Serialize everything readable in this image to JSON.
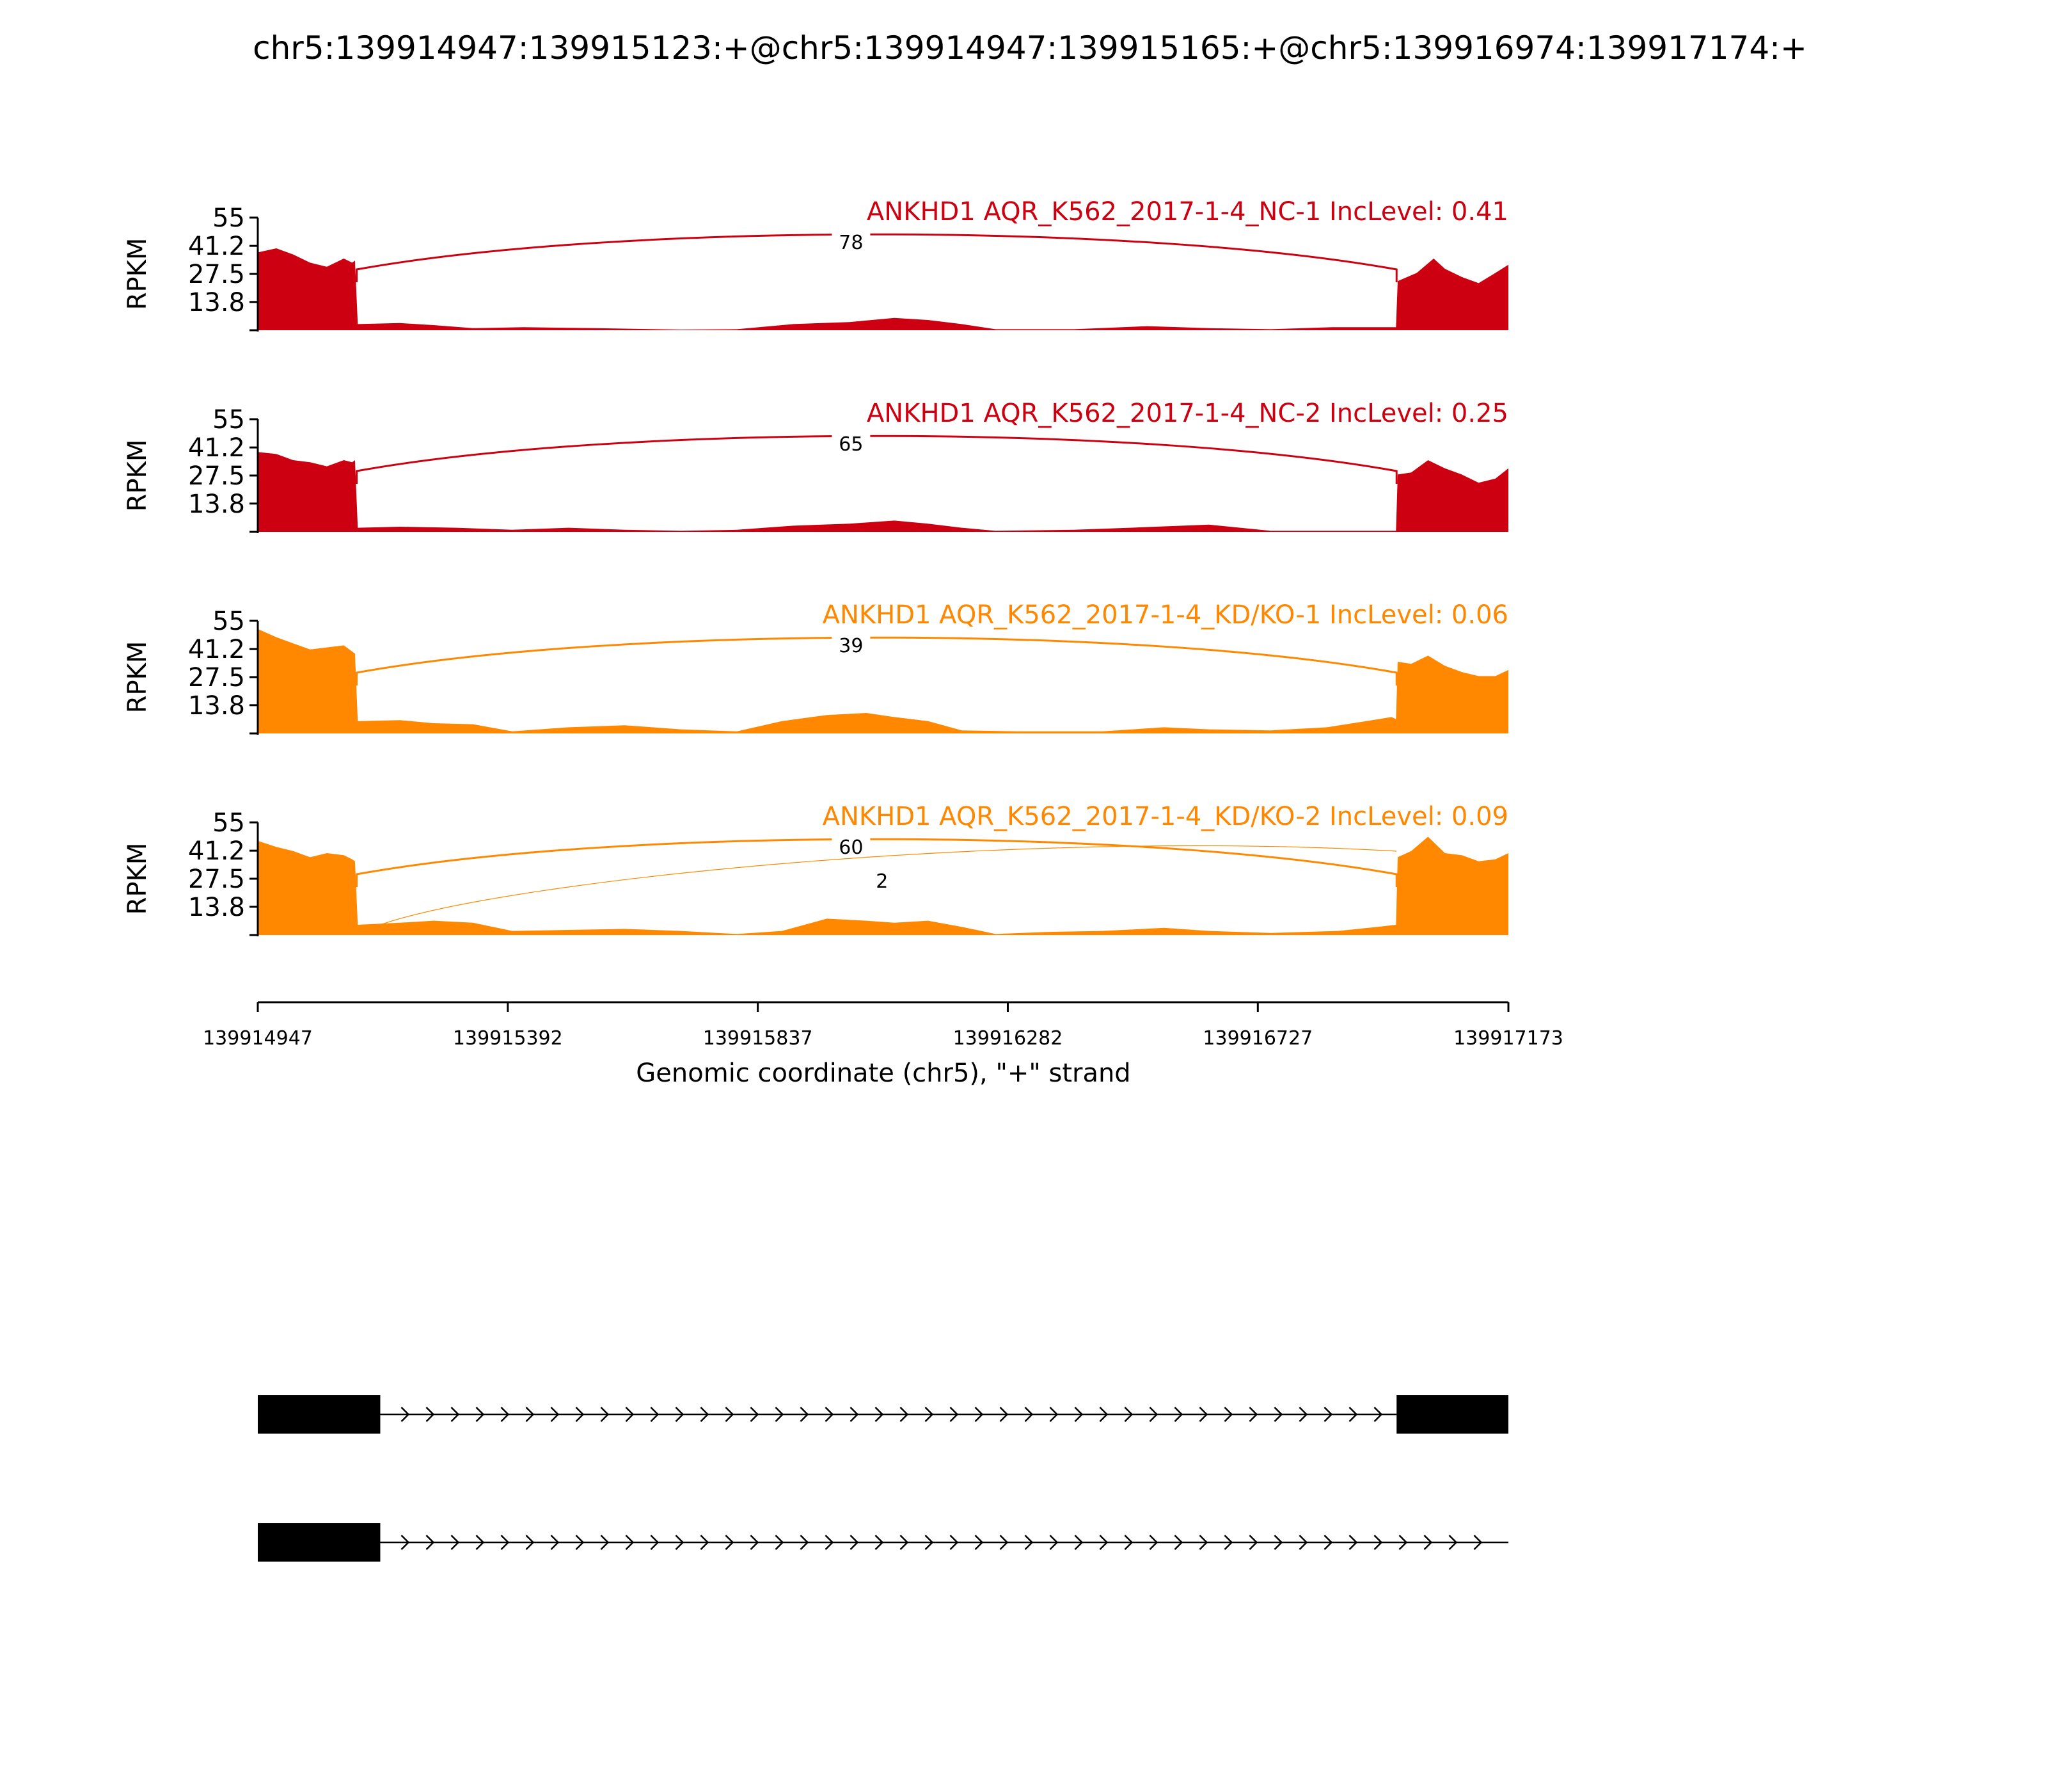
{
  "title": "chr5:139914947:139915123:+@chr5:139914947:139915165:+@chr5:139916974:139917174:+",
  "chart_data": {
    "type": "area",
    "ylabel": "RPKM",
    "yticks": [
      "55",
      "41.2",
      "27.5",
      "13.8"
    ],
    "ylim": [
      0,
      55
    ],
    "xlabel": "Genomic coordinate (chr5), \"+\" strand",
    "xlim": [
      139914947,
      139917173
    ],
    "xticks": [
      "139914947",
      "139915392",
      "139915837",
      "139916282",
      "139916727",
      "139917173"
    ],
    "tracks": [
      {
        "label": "ANKHD1 AQR_K562_2017-1-4_NC-1 IncLevel: 0.41",
        "color": "#cc0011",
        "junctions": [
          {
            "count": "78",
            "start": 139915123,
            "end": 139916974
          }
        ],
        "coverage": [
          [
            139914947,
            38
          ],
          [
            139914980,
            40
          ],
          [
            139915010,
            37
          ],
          [
            139915040,
            33
          ],
          [
            139915070,
            31
          ],
          [
            139915100,
            35
          ],
          [
            139915115,
            33
          ],
          [
            139915120,
            34
          ],
          [
            139915125,
            3
          ],
          [
            139915200,
            3.5
          ],
          [
            139915260,
            2.5
          ],
          [
            139915330,
            1
          ],
          [
            139915420,
            1.5
          ],
          [
            139915550,
            1
          ],
          [
            139915700,
            0.3
          ],
          [
            139915800,
            0.5
          ],
          [
            139915900,
            3
          ],
          [
            139916000,
            4
          ],
          [
            139916080,
            6
          ],
          [
            139916140,
            5
          ],
          [
            139916200,
            3
          ],
          [
            139916260,
            0.5
          ],
          [
            139916400,
            0.5
          ],
          [
            139916530,
            2
          ],
          [
            139916640,
            1
          ],
          [
            139916750,
            0.5
          ],
          [
            139916860,
            1.5
          ],
          [
            139916973,
            1.5
          ],
          [
            139916976,
            24
          ],
          [
            139917010,
            28
          ],
          [
            139917040,
            35
          ],
          [
            139917060,
            30
          ],
          [
            139917090,
            26
          ],
          [
            139917120,
            23
          ],
          [
            139917150,
            28
          ],
          [
            139917173,
            32
          ]
        ]
      },
      {
        "label": "ANKHD1 AQR_K562_2017-1-4_NC-2 IncLevel: 0.25",
        "color": "#cc0011",
        "junctions": [
          {
            "count": "65",
            "start": 139915123,
            "end": 139916974
          }
        ],
        "coverage": [
          [
            139914947,
            39
          ],
          [
            139914980,
            38
          ],
          [
            139915010,
            35
          ],
          [
            139915040,
            34
          ],
          [
            139915070,
            32
          ],
          [
            139915100,
            35
          ],
          [
            139915115,
            34
          ],
          [
            139915120,
            35
          ],
          [
            139915125,
            2
          ],
          [
            139915200,
            2.5
          ],
          [
            139915300,
            2
          ],
          [
            139915400,
            1
          ],
          [
            139915500,
            2
          ],
          [
            139915600,
            1
          ],
          [
            139915700,
            0.5
          ],
          [
            139915800,
            1
          ],
          [
            139915900,
            3
          ],
          [
            139916000,
            4
          ],
          [
            139916080,
            5.5
          ],
          [
            139916140,
            4
          ],
          [
            139916200,
            2
          ],
          [
            139916260,
            0.5
          ],
          [
            139916400,
            1
          ],
          [
            139916500,
            2
          ],
          [
            139916640,
            3.5
          ],
          [
            139916750,
            0.5
          ],
          [
            139916973,
            0.5
          ],
          [
            139916976,
            28
          ],
          [
            139917000,
            29
          ],
          [
            139917030,
            35
          ],
          [
            139917060,
            31
          ],
          [
            139917090,
            28
          ],
          [
            139917120,
            24
          ],
          [
            139917150,
            26
          ],
          [
            139917173,
            31
          ]
        ]
      },
      {
        "label": "ANKHD1 AQR_K562_2017-1-4_KD/KO-1 IncLevel: 0.06",
        "color": "#ff8800",
        "junctions": [
          {
            "count": "39",
            "start": 139915123,
            "end": 139916974
          }
        ],
        "coverage": [
          [
            139914947,
            51
          ],
          [
            139914980,
            47
          ],
          [
            139915010,
            44
          ],
          [
            139915040,
            41
          ],
          [
            139915070,
            42
          ],
          [
            139915100,
            43
          ],
          [
            139915115,
            40
          ],
          [
            139915120,
            39
          ],
          [
            139915125,
            6
          ],
          [
            139915200,
            6.5
          ],
          [
            139915260,
            5
          ],
          [
            139915330,
            4.5
          ],
          [
            139915400,
            1
          ],
          [
            139915500,
            3
          ],
          [
            139915600,
            4
          ],
          [
            139915700,
            2
          ],
          [
            139915800,
            1
          ],
          [
            139915880,
            6
          ],
          [
            139915960,
            9
          ],
          [
            139916030,
            10
          ],
          [
            139916080,
            8
          ],
          [
            139916140,
            6
          ],
          [
            139916200,
            1.5
          ],
          [
            139916300,
            1
          ],
          [
            139916450,
            1
          ],
          [
            139916560,
            3
          ],
          [
            139916640,
            2
          ],
          [
            139916750,
            1.5
          ],
          [
            139916850,
            3
          ],
          [
            139916920,
            6
          ],
          [
            139916965,
            8
          ],
          [
            139916973,
            7
          ],
          [
            139916976,
            35
          ],
          [
            139917000,
            34
          ],
          [
            139917030,
            38
          ],
          [
            139917060,
            33
          ],
          [
            139917090,
            30
          ],
          [
            139917120,
            28
          ],
          [
            139917150,
            28
          ],
          [
            139917173,
            31
          ]
        ]
      },
      {
        "label": "ANKHD1 AQR_K562_2017-1-4_KD/KO-2 IncLevel: 0.09",
        "color": "#ff8800",
        "junctions": [
          {
            "count": "60",
            "start": 139915123,
            "end": 139916974
          },
          {
            "count": "2",
            "start": 139915165,
            "end": 139916974
          }
        ],
        "coverage": [
          [
            139914947,
            46
          ],
          [
            139914980,
            43
          ],
          [
            139915010,
            41
          ],
          [
            139915040,
            38
          ],
          [
            139915070,
            40
          ],
          [
            139915100,
            39
          ],
          [
            139915115,
            37
          ],
          [
            139915120,
            36
          ],
          [
            139915125,
            5
          ],
          [
            139915200,
            6
          ],
          [
            139915260,
            7
          ],
          [
            139915330,
            6
          ],
          [
            139915400,
            2
          ],
          [
            139915500,
            2.5
          ],
          [
            139915600,
            3
          ],
          [
            139915700,
            2
          ],
          [
            139915800,
            0.5
          ],
          [
            139915880,
            2
          ],
          [
            139915960,
            8
          ],
          [
            139916030,
            7
          ],
          [
            139916080,
            6
          ],
          [
            139916140,
            7
          ],
          [
            139916200,
            4
          ],
          [
            139916260,
            0.5
          ],
          [
            139916350,
            1.5
          ],
          [
            139916450,
            2
          ],
          [
            139916560,
            3.5
          ],
          [
            139916640,
            2
          ],
          [
            139916750,
            1
          ],
          [
            139916870,
            2
          ],
          [
            139916940,
            4
          ],
          [
            139916973,
            5
          ],
          [
            139916976,
            38
          ],
          [
            139917000,
            41
          ],
          [
            139917030,
            48
          ],
          [
            139917060,
            40
          ],
          [
            139917090,
            39
          ],
          [
            139917120,
            36
          ],
          [
            139917150,
            37
          ],
          [
            139917173,
            40
          ]
        ]
      }
    ],
    "transcripts": [
      {
        "exons": [
          [
            139914947,
            139915165
          ],
          [
            139916974,
            139917173
          ]
        ],
        "line": [
          139915165,
          139916974
        ]
      },
      {
        "exons": [
          [
            139914947,
            139915165
          ]
        ],
        "line": [
          139915165,
          139917173
        ]
      }
    ]
  }
}
